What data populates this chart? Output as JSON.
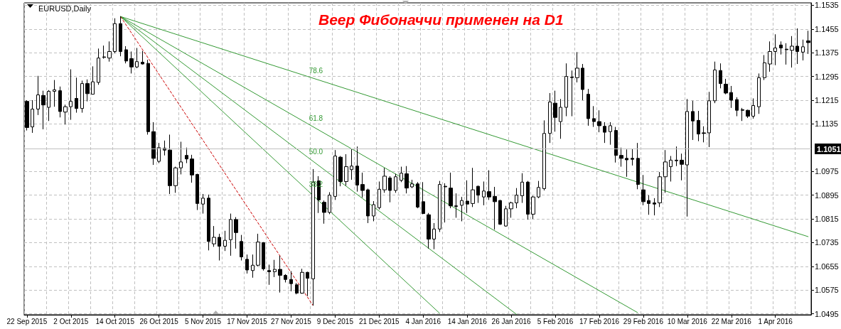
{
  "chart_data": {
    "type": "candlestick",
    "title": "Веер Фибоначчи применен на D1",
    "subtitle": "EURUSD,Daily",
    "categories": [
      "22 Sep 2015",
      null,
      null,
      null,
      null,
      null,
      null,
      null,
      "2 Oct 2015",
      null,
      null,
      null,
      null,
      null,
      null,
      null,
      "14 Oct 2015",
      null,
      null,
      null,
      null,
      null,
      null,
      null,
      "26 Oct 2015",
      null,
      null,
      null,
      null,
      null,
      null,
      null,
      "5 Nov 2015",
      null,
      null,
      null,
      null,
      null,
      null,
      null,
      "17 Nov 2015",
      null,
      null,
      null,
      null,
      null,
      null,
      null,
      "27 Nov 2015",
      null,
      null,
      null,
      null,
      null,
      null,
      null,
      "9 Dec 2015",
      null,
      null,
      null,
      null,
      null,
      null,
      null,
      "21 Dec 2015",
      null,
      null,
      null,
      null,
      null,
      null,
      null,
      "4 Jan 2016",
      null,
      null,
      null,
      null,
      null,
      null,
      null,
      "14 Jan 2016",
      null,
      null,
      null,
      null,
      null,
      null,
      null,
      "26 Jan 2016",
      null,
      null,
      null,
      null,
      null,
      null,
      null,
      "5 Feb 2016",
      null,
      null,
      null,
      null,
      null,
      null,
      null,
      "17 Feb 2016",
      null,
      null,
      null,
      null,
      null,
      null,
      null,
      "29 Feb 2016",
      null,
      null,
      null,
      null,
      null,
      null,
      null,
      "10 Mar 2016",
      null,
      null,
      null,
      null,
      null,
      null,
      null,
      "22 Mar 2016",
      null,
      null,
      null,
      null,
      null,
      null,
      null,
      "1 Apr 2016",
      null,
      null,
      null,
      null,
      null,
      null
    ],
    "series": [
      {
        "color": "#000000",
        "ohlc": [
          [
            1.1211,
            1.1215,
            1.1113,
            1.1123
          ],
          [
            1.1125,
            1.1215,
            1.1105,
            1.1185
          ],
          [
            1.1185,
            1.1297,
            1.1165,
            1.1233
          ],
          [
            1.1231,
            1.1247,
            1.1117,
            1.1199
          ],
          [
            1.1191,
            1.1249,
            1.1145,
            1.1245
          ],
          [
            1.1245,
            1.1283,
            1.1193,
            1.125
          ],
          [
            1.1247,
            1.1261,
            1.1157,
            1.1177
          ],
          [
            1.1175,
            1.12,
            1.1133,
            1.1193
          ],
          [
            1.1193,
            1.1319,
            1.1149,
            1.1211
          ],
          [
            1.1221,
            1.1291,
            1.1173,
            1.1187
          ],
          [
            1.1187,
            1.1281,
            1.1173,
            1.1271
          ],
          [
            1.1271,
            1.1285,
            1.1211,
            1.1237
          ],
          [
            1.1235,
            1.1329,
            1.1235,
            1.1277
          ],
          [
            1.1275,
            1.1389,
            1.1267,
            1.1357
          ],
          [
            1.1359,
            1.1399,
            1.1355,
            1.1361
          ],
          [
            1.1357,
            1.1413,
            1.1345,
            1.1379
          ],
          [
            1.1379,
            1.1491,
            1.1373,
            1.1473
          ],
          [
            1.1473,
            1.1497,
            1.1363,
            1.1379
          ],
          [
            1.1385,
            1.1397,
            1.1339,
            1.1347
          ],
          [
            1.1355,
            1.1379,
            1.1305,
            1.1327
          ],
          [
            1.1327,
            1.1391,
            1.1323,
            1.1345
          ],
          [
            1.1343,
            1.1381,
            1.1335,
            1.1337
          ],
          [
            1.1339,
            1.1351,
            1.1099,
            1.1109
          ],
          [
            1.1109,
            1.1141,
            1.0997,
            1.1019
          ],
          [
            1.1009,
            1.1071,
            1.1003,
            1.1055
          ],
          [
            1.1053,
            1.1079,
            1.1029,
            1.1047
          ],
          [
            1.1047,
            1.1099,
            1.0899,
            1.0927
          ],
          [
            1.0927,
            1.0991,
            1.0903,
            1.0987
          ],
          [
            1.0987,
            1.1075,
            1.0965,
            1.1007
          ],
          [
            1.1029,
            1.1055,
            1.1003,
            1.1017
          ],
          [
            1.1017,
            1.1031,
            1.0937,
            1.0963
          ],
          [
            1.0965,
            1.0967,
            1.0845,
            1.0867
          ],
          [
            1.0865,
            1.0899,
            1.0833,
            1.0885
          ],
          [
            1.0885,
            1.0897,
            1.0709,
            1.0739
          ],
          [
            1.0731,
            1.0791,
            1.0721,
            1.0753
          ],
          [
            1.0753,
            1.0765,
            1.0675,
            1.0723
          ],
          [
            1.0723,
            1.0775,
            1.0707,
            1.0743
          ],
          [
            1.0745,
            1.0833,
            1.0691,
            1.0813
          ],
          [
            1.0813,
            1.0821,
            1.0715,
            1.0769
          ],
          [
            1.0739,
            1.0761,
            1.0675,
            1.0687
          ],
          [
            1.0679,
            1.0695,
            1.0631,
            1.0643
          ],
          [
            1.0641,
            1.0695,
            1.0617,
            1.0659
          ],
          [
            1.0659,
            1.0765,
            1.0655,
            1.0737
          ],
          [
            1.0735,
            1.0737,
            1.0641,
            1.0647
          ],
          [
            1.0641,
            1.0661,
            1.0593,
            1.0637
          ],
          [
            1.0637,
            1.0677,
            1.0619,
            1.0645
          ],
          [
            1.0645,
            1.0691,
            1.0567,
            1.0625
          ],
          [
            1.0625,
            1.0629,
            1.0601,
            1.0611
          ],
          [
            1.0611,
            1.0639,
            1.0571,
            1.0597
          ],
          [
            1.0593,
            1.0599,
            1.0561,
            1.0565
          ],
          [
            1.0565,
            1.0647,
            1.0563,
            1.0635
          ],
          [
            1.0635,
            1.0637,
            1.0555,
            1.0615
          ],
          [
            1.0613,
            1.0983,
            1.0523,
            1.0939
          ],
          [
            1.0943,
            1.0959,
            1.0835,
            1.0879
          ],
          [
            1.0871,
            1.0877,
            1.0799,
            1.0837
          ],
          [
            1.0837,
            1.0905,
            1.0831,
            1.0895
          ],
          [
            1.0891,
            1.1047,
            1.0879,
            1.1027
          ],
          [
            1.1023,
            1.1027,
            1.0925,
            1.0941
          ],
          [
            1.0941,
            1.1033,
            1.0927,
            1.0991
          ],
          [
            1.0981,
            1.1051,
            1.0947,
            1.0993
          ],
          [
            1.0993,
            1.1059,
            1.0907,
            1.0929
          ],
          [
            1.0931,
            1.0971,
            1.0887,
            1.0911
          ],
          [
            1.0913,
            1.0917,
            1.0801,
            1.0825
          ],
          [
            1.0825,
            1.0875,
            1.0807,
            1.0863
          ],
          [
            1.0853,
            1.0941,
            1.0847,
            1.0915
          ],
          [
            1.0913,
            1.0987,
            1.0903,
            1.0959
          ],
          [
            1.0953,
            1.0959,
            1.0871,
            1.0911
          ],
          [
            1.0911,
            1.0967,
            1.0903,
            1.0957
          ],
          [
            1.0945,
            1.0991,
            1.0939,
            1.0969
          ],
          [
            1.0967,
            1.0993,
            1.0901,
            1.0919
          ],
          [
            1.0923,
            1.0947,
            1.0919,
            1.0933
          ],
          [
            1.0933,
            1.0939,
            1.0851,
            1.0855
          ],
          [
            1.0873,
            1.0939,
            1.0831,
            1.0833
          ],
          [
            1.0829,
            1.0835,
            1.0715,
            1.0747
          ],
          [
            1.0747,
            1.0801,
            1.0713,
            1.0781
          ],
          [
            1.0781,
            1.0943,
            1.0771,
            1.0931
          ],
          [
            1.0925,
            1.0935,
            1.0803,
            1.0923
          ],
          [
            1.0919,
            1.0971,
            1.0851,
            1.0859
          ],
          [
            1.0859,
            1.0901,
            1.0819,
            1.0857
          ],
          [
            1.0861,
            1.0889,
            1.0807,
            1.0877
          ],
          [
            1.0875,
            1.0945,
            1.0835,
            1.0865
          ],
          [
            1.0867,
            1.0987,
            1.0855,
            1.0913
          ],
          [
            1.0925,
            1.0927,
            1.0869,
            1.0895
          ],
          [
            1.0889,
            1.0941,
            1.0861,
            1.0909
          ],
          [
            1.0907,
            1.0979,
            1.0879,
            1.0889
          ],
          [
            1.0891,
            1.0923,
            1.0779,
            1.0873
          ],
          [
            1.0877,
            1.0879,
            1.0795,
            1.0797
          ],
          [
            1.0791,
            1.0859,
            1.0789,
            1.0849
          ],
          [
            1.0849,
            1.0873,
            1.0819,
            1.0869
          ],
          [
            1.0869,
            1.0919,
            1.0851,
            1.0895
          ],
          [
            1.0893,
            1.0969,
            1.0869,
            1.0939
          ],
          [
            1.0939,
            1.0943,
            1.0813,
            1.0831
          ],
          [
            1.0831,
            1.0893,
            1.0815,
            1.0889
          ],
          [
            1.0889,
            1.0943,
            1.0885,
            1.0921
          ],
          [
            1.0917,
            1.1147,
            1.0911,
            1.1103
          ],
          [
            1.1103,
            1.1239,
            1.1071,
            1.1209
          ],
          [
            1.1205,
            1.1247,
            1.1109,
            1.1157
          ],
          [
            1.1143,
            1.1219,
            1.1085,
            1.1191
          ],
          [
            1.1191,
            1.1339,
            1.1161,
            1.1295
          ],
          [
            1.1291,
            1.1315,
            1.1161,
            1.1293
          ],
          [
            1.1291,
            1.1377,
            1.1275,
            1.1323
          ],
          [
            1.1323,
            1.1337,
            1.1215,
            1.1251
          ],
          [
            1.1235,
            1.1253,
            1.1129,
            1.1153
          ],
          [
            1.1153,
            1.1195,
            1.1125,
            1.1143
          ],
          [
            1.1143,
            1.1181,
            1.1107,
            1.1129
          ],
          [
            1.1127,
            1.1141,
            1.1071,
            1.1107
          ],
          [
            1.1109,
            1.1141,
            1.1065,
            1.1129
          ],
          [
            1.1113,
            1.1125,
            1.1005,
            1.1029
          ],
          [
            1.1029,
            1.1055,
            1.0991,
            1.1019
          ],
          [
            1.1019,
            1.1049,
            1.0957,
            1.1014
          ],
          [
            1.1019,
            1.1051,
            1.0995,
            1.1016
          ],
          [
            1.1019,
            1.1071,
            1.0915,
            1.0931
          ],
          [
            1.0913,
            1.0963,
            1.0861,
            1.0873
          ],
          [
            1.0877,
            1.0895,
            1.0829,
            1.0867
          ],
          [
            1.0869,
            1.0885,
            1.0827,
            1.0865
          ],
          [
            1.0869,
            1.0973,
            1.0855,
            1.0957
          ],
          [
            1.0957,
            1.1047,
            1.0903,
            1.1007
          ],
          [
            1.0991,
            1.1027,
            1.0941,
            1.1013
          ],
          [
            1.1013,
            1.1059,
            1.0993,
            1.1011
          ],
          [
            1.1013,
            1.1035,
            1.0945,
            1.0999
          ],
          [
            1.0997,
            1.1219,
            1.0823,
            1.1177
          ],
          [
            1.1177,
            1.1213,
            1.1081,
            1.1145
          ],
          [
            1.1147,
            1.1179,
            1.1077,
            1.1101
          ],
          [
            1.1105,
            1.1127,
            1.1073,
            1.1103
          ],
          [
            1.1105,
            1.1243,
            1.1057,
            1.1213
          ],
          [
            1.1213,
            1.1345,
            1.1205,
            1.1317
          ],
          [
            1.1315,
            1.1339,
            1.1255,
            1.1271
          ],
          [
            1.1269,
            1.1287,
            1.1235,
            1.1239
          ],
          [
            1.1241,
            1.1263,
            1.1189,
            1.1215
          ],
          [
            1.1217,
            1.1225,
            1.1161,
            1.1181
          ],
          [
            1.1183,
            1.1189,
            1.1145,
            1.1181
          ],
          [
            1.1181,
            1.1183,
            1.1155,
            1.1161
          ],
          [
            1.1161,
            1.1221,
            1.1153,
            1.1197
          ],
          [
            1.1193,
            1.1305,
            1.1169,
            1.1291
          ],
          [
            1.1291,
            1.1367,
            1.1283,
            1.1341
          ],
          [
            1.1337,
            1.1413,
            1.1311,
            1.1379
          ],
          [
            1.1379,
            1.1437,
            1.1333,
            1.1391
          ],
          [
            1.1401,
            1.1413,
            1.1369,
            1.1391
          ],
          [
            1.1387,
            1.1407,
            1.1335,
            1.1385
          ],
          [
            1.1383,
            1.1431,
            1.1325,
            1.1397
          ],
          [
            1.1397,
            1.1457,
            1.1337,
            1.1379
          ],
          [
            1.1377,
            1.1419,
            1.1349,
            1.1395
          ],
          [
            1.1415,
            1.1449,
            1.1371,
            1.1409
          ]
        ]
      },
      {
        "type": "line",
        "name": "78.6",
        "color": "#339933",
        "values": [
          null,
          null,
          null,
          null,
          null,
          null,
          null,
          null,
          null,
          null,
          null,
          null,
          null,
          null,
          null,
          null,
          null,
          1.1497,
          null,
          null,
          null,
          null,
          null,
          null,
          null,
          null,
          null,
          null,
          null,
          null,
          null,
          null,
          null,
          null,
          null,
          null,
          null,
          null,
          null,
          null,
          null,
          null,
          null,
          null,
          null,
          null,
          null,
          null,
          null,
          null,
          null,
          1.1295,
          null,
          null,
          null,
          null,
          null,
          null,
          null,
          null,
          null,
          null,
          null,
          null,
          null,
          null,
          null,
          null,
          null,
          null,
          null,
          null,
          null,
          null,
          null,
          null,
          null,
          null,
          null,
          null,
          null,
          null,
          null,
          null,
          null,
          null,
          null,
          null,
          null,
          null,
          null,
          null,
          null,
          null,
          null,
          null,
          null,
          null,
          null,
          null,
          null,
          null,
          null,
          null,
          null,
          null,
          null,
          null,
          null,
          null,
          null,
          null,
          null,
          null,
          null,
          null,
          null,
          null,
          null,
          null,
          null,
          null,
          null,
          null,
          null,
          null,
          null,
          null,
          null,
          null,
          null,
          null,
          null,
          null,
          null,
          null,
          null,
          null,
          null,
          null,
          null,
          null,
          1.0755
        ]
      },
      {
        "type": "line",
        "name": "61.8",
        "color": "#339933",
        "values": [
          null,
          null,
          null,
          null,
          null,
          null,
          null,
          null,
          null,
          null,
          null,
          null,
          null,
          null,
          null,
          null,
          null,
          1.1497,
          null,
          null,
          null,
          null,
          null,
          null,
          null,
          null,
          null,
          null,
          null,
          null,
          null,
          null,
          null,
          null,
          null,
          null,
          null,
          null,
          null,
          null,
          null,
          null,
          null,
          null,
          null,
          null,
          null,
          null,
          null,
          null,
          null,
          1.1136,
          null,
          null,
          null,
          null,
          null,
          null,
          null,
          null,
          null,
          null,
          null,
          null,
          null,
          null,
          null,
          null,
          null,
          null,
          null,
          null,
          null,
          null,
          null,
          null,
          null,
          null,
          null,
          null,
          null,
          null,
          null,
          null,
          null,
          null,
          null,
          null,
          null,
          null,
          null,
          null,
          null,
          null,
          null,
          null,
          null,
          null,
          null,
          null,
          null,
          null,
          null,
          null,
          null,
          null,
          null,
          null,
          null,
          null,
          null,
          1.0499,
          null,
          null,
          null,
          null,
          null,
          null,
          null,
          null,
          null,
          null,
          null,
          null,
          null,
          null,
          null,
          null,
          null,
          null,
          null,
          null,
          null,
          null,
          null,
          null,
          null,
          null,
          null,
          null,
          null,
          null,
          null
        ]
      },
      {
        "type": "line",
        "name": "50.0",
        "color": "#339933",
        "values": [
          null,
          null,
          null,
          null,
          null,
          null,
          null,
          null,
          null,
          null,
          null,
          null,
          null,
          null,
          null,
          null,
          null,
          1.1497,
          null,
          null,
          null,
          null,
          null,
          null,
          null,
          null,
          null,
          null,
          null,
          null,
          null,
          null,
          null,
          null,
          null,
          null,
          null,
          null,
          null,
          null,
          null,
          null,
          null,
          null,
          null,
          null,
          null,
          null,
          null,
          null,
          null,
          1.1023,
          null,
          null,
          null,
          null,
          null,
          null,
          null,
          null,
          null,
          null,
          null,
          null,
          null,
          null,
          null,
          null,
          null,
          null,
          null,
          null,
          null,
          null,
          null,
          null,
          null,
          null,
          null,
          null,
          null,
          null,
          null,
          null,
          null,
          null,
          null,
          null,
          null,
          1.0493,
          null,
          null,
          null,
          null,
          null,
          null,
          null,
          null,
          null,
          null,
          null,
          null,
          null,
          null,
          null,
          null,
          null,
          null,
          null,
          null,
          null,
          null,
          null,
          null,
          null,
          null,
          null,
          null,
          null,
          null,
          null,
          null,
          null,
          null,
          null,
          null,
          null,
          null,
          null,
          null,
          null,
          null,
          null,
          null,
          null,
          null,
          null,
          null,
          null,
          null,
          null,
          null,
          null
        ]
      },
      {
        "type": "line",
        "name": "38.2",
        "color": "#339933",
        "values": [
          null,
          null,
          null,
          null,
          null,
          null,
          null,
          null,
          null,
          null,
          null,
          null,
          null,
          null,
          null,
          null,
          null,
          1.1497,
          null,
          null,
          null,
          null,
          null,
          null,
          null,
          null,
          null,
          null,
          null,
          null,
          null,
          null,
          null,
          null,
          null,
          null,
          null,
          null,
          null,
          null,
          null,
          null,
          null,
          null,
          null,
          null,
          null,
          null,
          null,
          null,
          null,
          1.0911,
          null,
          null,
          null,
          null,
          null,
          null,
          null,
          null,
          null,
          null,
          null,
          null,
          null,
          null,
          null,
          null,
          null,
          null,
          null,
          null,
          null,
          null,
          null,
          1.0497,
          null,
          null,
          null,
          null,
          null,
          null,
          null,
          null,
          null,
          null,
          null,
          null,
          null,
          null,
          null,
          null,
          null,
          null,
          null,
          null,
          null,
          null,
          null,
          null,
          null,
          null,
          null,
          null,
          null,
          null,
          null,
          null,
          null,
          null,
          null,
          null,
          null,
          null,
          null,
          null,
          null,
          null,
          null,
          null,
          null,
          null,
          null,
          null,
          null,
          null,
          null,
          null,
          null,
          null,
          null,
          null,
          null,
          null,
          null,
          null,
          null,
          null,
          null,
          null,
          null,
          null,
          null
        ]
      },
      {
        "type": "line",
        "color": "#cc0000",
        "line_style": "dashed",
        "values": [
          null,
          null,
          null,
          null,
          null,
          null,
          null,
          null,
          null,
          null,
          null,
          null,
          null,
          null,
          null,
          null,
          null,
          1.1497,
          null,
          null,
          null,
          null,
          null,
          null,
          null,
          null,
          null,
          null,
          null,
          null,
          null,
          null,
          null,
          null,
          null,
          null,
          null,
          null,
          null,
          null,
          null,
          null,
          null,
          null,
          null,
          null,
          null,
          null,
          null,
          null,
          null,
          null,
          1.0523,
          null,
          null,
          null,
          null,
          null,
          null,
          null,
          null,
          null,
          null,
          null,
          null,
          null,
          null,
          null,
          null,
          null,
          null,
          null,
          null,
          null,
          null,
          null,
          null,
          null,
          null,
          null,
          null,
          null,
          null,
          null,
          null,
          null,
          null,
          null,
          null,
          null,
          null,
          null,
          null,
          null,
          null,
          null,
          null,
          null,
          null,
          null,
          null,
          null,
          null,
          null,
          null,
          null,
          null,
          null,
          null,
          null,
          null,
          null,
          null,
          null,
          null,
          null,
          null,
          null,
          null,
          null,
          null,
          null,
          null,
          null,
          null,
          null,
          null,
          null,
          null,
          null,
          null,
          null,
          null,
          null,
          null,
          null,
          null,
          null,
          null,
          null,
          null,
          null,
          null
        ]
      }
    ],
    "ylim": [
      1.0492,
      1.1543
    ],
    "yticks": [
      1.0495,
      1.0575,
      1.0655,
      1.0735,
      1.0815,
      1.0895,
      1.0975,
      1.1135,
      1.1215,
      1.1295,
      1.1375,
      1.1455,
      1.1535
    ],
    "ref_lines": [
      {
        "axis": "y",
        "value": 1.1051,
        "label": "1.1051",
        "color": "#c0c0c0"
      }
    ],
    "grid": true,
    "marker": "none",
    "line_style": "solid"
  }
}
